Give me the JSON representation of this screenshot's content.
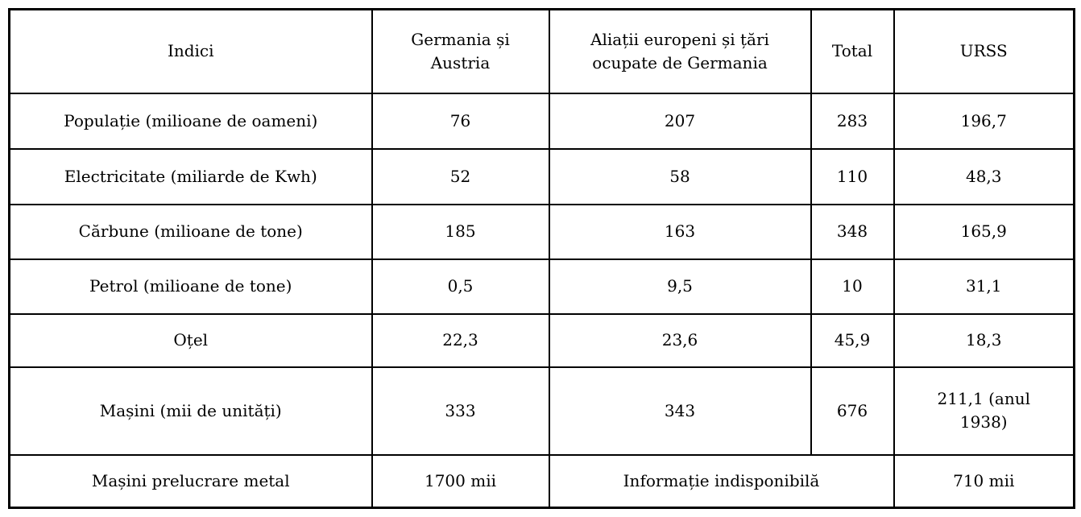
{
  "colors": {
    "border": "#000000",
    "background": "#ffffff",
    "text": "#000000"
  },
  "table": {
    "columns": {
      "indici": "Indici",
      "germania_austria": "Germania și\nAustria",
      "aliati": "Aliații europeni și țări\nocupate de Germania",
      "total": "Total",
      "urss": "URSS"
    },
    "rows": [
      {
        "label": "Populație (milioane de oameni)",
        "values": [
          "76",
          "207",
          "283",
          "196,7"
        ]
      },
      {
        "label": "Electricitate (miliarde de Kwh)",
        "values": [
          "52",
          "58",
          "110",
          "48,3"
        ]
      },
      {
        "label": "Cărbune (milioane de tone)",
        "values": [
          "185",
          "163",
          "348",
          "165,9"
        ]
      },
      {
        "label": "Petrol (milioane de tone)",
        "values": [
          "0,5",
          "9,5",
          "10",
          "31,1"
        ]
      },
      {
        "label": "Oțel",
        "values": [
          "22,3",
          "23,6",
          "45,9",
          "18,3"
        ]
      },
      {
        "label": "Mașini (mii de unități)",
        "values": [
          "333",
          "343",
          "676",
          "211,1 (anul\n1938)"
        ]
      }
    ],
    "last_row": {
      "label": "Mașini prelucrare metal",
      "germania_austria": "1700 mii",
      "merged": "Informație indisponibilă",
      "urss": "710 mii"
    }
  }
}
